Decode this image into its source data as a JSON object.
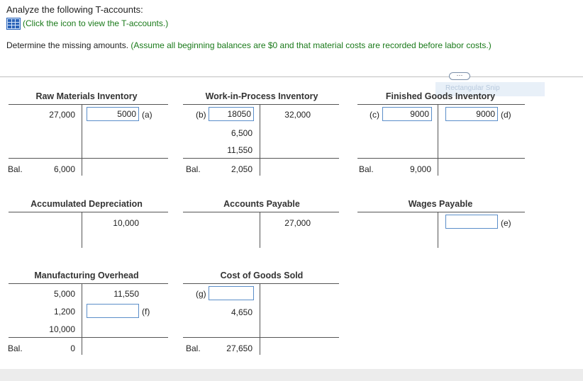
{
  "header": {
    "line1": "Analyze the following T-accounts:",
    "icon_link": "(Click the icon to view the T-accounts.)",
    "instruction": "Determine the missing amounts.",
    "assumption": "(Assume all beginning balances are $0 and that material costs are recorded before labor costs.)"
  },
  "snip_tooltip": "Rectangular Snip",
  "bal_label": "Bal.",
  "accounts": {
    "raw": {
      "title": "Raw Materials Inventory",
      "debit1": "27,000",
      "credit_input": "5000",
      "credit_tag": "(a)",
      "bal": "6,000"
    },
    "wip": {
      "title": "Work-in-Process Inventory",
      "debit_tag": "(b)",
      "debit_input": "18050",
      "debit2": "6,500",
      "debit3": "11,550",
      "credit1": "32,000",
      "bal": "2,050"
    },
    "fg": {
      "title": "Finished Goods Inventory",
      "debit_tag": "(c)",
      "debit_input": "9000",
      "credit_input": "9000",
      "credit_tag": "(d)",
      "bal": "9,000"
    },
    "accdep": {
      "title": "Accumulated Depreciation",
      "credit1": "10,000"
    },
    "ap": {
      "title": "Accounts Payable",
      "credit1": "27,000"
    },
    "wages": {
      "title": "Wages Payable",
      "credit_input": "",
      "credit_tag": "(e)"
    },
    "moh": {
      "title": "Manufacturing Overhead",
      "debit1": "5,000",
      "debit2": "1,200",
      "debit3": "10,000",
      "credit1": "11,550",
      "credit_input": "",
      "credit_tag": "(f)",
      "bal": "0"
    },
    "cogs": {
      "title": "Cost of Goods Sold",
      "debit_tag": "(g)",
      "debit_input": "",
      "debit2": "4,650",
      "bal": "27,650"
    }
  }
}
